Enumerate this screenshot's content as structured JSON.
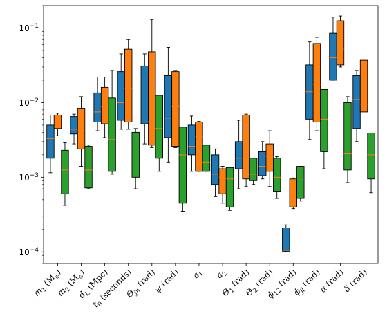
{
  "chart_data": {
    "type": "boxplot",
    "yscale": "log",
    "ylim": [
      7e-05,
      0.2
    ],
    "yticks": [
      {
        "value": 0.0001,
        "base": "10",
        "exp": "−4"
      },
      {
        "value": 0.001,
        "base": "10",
        "exp": "−3"
      },
      {
        "value": 0.01,
        "base": "10",
        "exp": "−2"
      },
      {
        "value": 0.1,
        "base": "10",
        "exp": "−1"
      }
    ],
    "categories": [
      {
        "main": "m",
        "sub": "1",
        "rest": " (M",
        "sun": "⊙",
        "end": ")"
      },
      {
        "main": "m",
        "sub": "2",
        "rest": " (M",
        "sun": "⊙",
        "end": ")"
      },
      {
        "main": "d",
        "sub": "L",
        "rest": " (Mpc)",
        "sun": "",
        "end": ""
      },
      {
        "main": "t",
        "sub": "0",
        "rest": " (seconds)",
        "sun": "",
        "end": ""
      },
      {
        "main": "Θ",
        "sub": "jn",
        "rest": " (rad)",
        "sun": "",
        "end": ""
      },
      {
        "main": "ψ",
        "sub": "",
        "rest": " (rad)",
        "sun": "",
        "end": ""
      },
      {
        "main": "a",
        "sub": "1",
        "rest": "",
        "sun": "",
        "end": ""
      },
      {
        "main": "a",
        "sub": "2",
        "rest": "",
        "sun": "",
        "end": ""
      },
      {
        "main": "Θ",
        "sub": "1",
        "rest": " (rad)",
        "sun": "",
        "end": ""
      },
      {
        "main": "Θ",
        "sub": "2",
        "rest": " (rad)",
        "sun": "",
        "end": ""
      },
      {
        "main": "ϕ",
        "sub": "12",
        "rest": " (rad)",
        "sun": "",
        "end": ""
      },
      {
        "main": "ϕ",
        "sub": "jl",
        "rest": " (rad)",
        "sun": "",
        "end": ""
      },
      {
        "main": "α",
        "sub": "",
        "rest": " (rad)",
        "sun": "",
        "end": ""
      },
      {
        "main": "δ",
        "sub": "",
        "rest": " (rad)",
        "sun": "",
        "end": ""
      }
    ],
    "series": [
      {
        "color": "#1f77b4",
        "boxes": [
          {
            "min": 0.00115,
            "q1": 0.0018,
            "median": 0.0033,
            "q3": 0.005,
            "max": 0.0068
          },
          {
            "min": 0.0028,
            "q1": 0.0038,
            "median": 0.0044,
            "q3": 0.0065,
            "max": 0.007
          },
          {
            "min": 0.0042,
            "q1": 0.0055,
            "median": 0.0075,
            "q3": 0.0135,
            "max": 0.022
          },
          {
            "min": 0.0044,
            "q1": 0.0058,
            "median": 0.01,
            "q3": 0.026,
            "max": 0.045
          },
          {
            "min": 0.0028,
            "q1": 0.0052,
            "median": 0.0068,
            "q3": 0.031,
            "max": 0.045
          },
          {
            "min": 0.0016,
            "q1": 0.0034,
            "median": 0.0062,
            "q3": 0.023,
            "max": 0.055
          },
          {
            "min": 0.0012,
            "q1": 0.002,
            "median": 0.0026,
            "q3": 0.005,
            "max": 0.0066
          },
          {
            "min": 0.00055,
            "q1": 0.0008,
            "median": 0.0011,
            "q3": 0.002,
            "max": 0.0024
          },
          {
            "min": 0.0007,
            "q1": 0.0013,
            "median": 0.0018,
            "q3": 0.003,
            "max": 0.0058
          },
          {
            "min": 0.00095,
            "q1": 0.00105,
            "median": 0.0014,
            "q3": 0.0022,
            "max": 0.003
          },
          {
            "min": 0.0001,
            "q1": 0.000102,
            "median": 0.000105,
            "q3": 0.00021,
            "max": 0.00023
          },
          {
            "min": 0.0032,
            "q1": 0.006,
            "median": 0.014,
            "q3": 0.032,
            "max": 0.065
          },
          {
            "min": 0.02,
            "q1": 0.02,
            "median": 0.04,
            "q3": 0.085,
            "max": 0.14
          },
          {
            "min": 0.003,
            "q1": 0.0045,
            "median": 0.011,
            "q3": 0.023,
            "max": 0.027
          }
        ]
      },
      {
        "color": "#ff7f0e",
        "boxes": [
          {
            "min": 0.0036,
            "q1": 0.0045,
            "median": 0.0055,
            "q3": 0.0068,
            "max": 0.0072
          },
          {
            "min": 0.0014,
            "q1": 0.0024,
            "median": 0.0042,
            "q3": 0.0084,
            "max": 0.012
          },
          {
            "min": 0.0034,
            "q1": 0.0052,
            "median": 0.0088,
            "q3": 0.016,
            "max": 0.022
          },
          {
            "min": 0.0044,
            "q1": 0.0055,
            "median": 0.0155,
            "q3": 0.052,
            "max": 0.07
          },
          {
            "min": 0.0025,
            "q1": 0.0027,
            "median": 0.0056,
            "q3": 0.048,
            "max": 0.13
          },
          {
            "min": 0.0025,
            "q1": 0.0026,
            "median": 0.0088,
            "q3": 0.026,
            "max": 0.027
          },
          {
            "min": 0.0012,
            "q1": 0.0012,
            "median": 0.0035,
            "q3": 0.0055,
            "max": 0.0056
          },
          {
            "min": 0.00045,
            "q1": 0.0006,
            "median": 0.001,
            "q3": 0.0013,
            "max": 0.0014
          },
          {
            "min": 0.00075,
            "q1": 0.00095,
            "median": 0.0015,
            "q3": 0.0068,
            "max": 0.007
          },
          {
            "min": 0.00075,
            "q1": 0.0012,
            "median": 0.0019,
            "q3": 0.0028,
            "max": 0.0042
          },
          {
            "min": 0.00038,
            "q1": 0.0004,
            "median": 0.00052,
            "q3": 0.00095,
            "max": 0.00098
          },
          {
            "min": 0.0042,
            "q1": 0.0055,
            "median": 0.0175,
            "q3": 0.062,
            "max": 0.075
          },
          {
            "min": 0.03,
            "q1": 0.032,
            "median": 0.052,
            "q3": 0.125,
            "max": 0.145
          },
          {
            "min": 0.0055,
            "q1": 0.0075,
            "median": 0.0095,
            "q3": 0.037,
            "max": 0.088
          }
        ]
      },
      {
        "color": "#2ca02c",
        "boxes": [
          {
            "min": 0.00042,
            "q1": 0.0006,
            "median": 0.00125,
            "q3": 0.0023,
            "max": 0.0029
          },
          {
            "min": 0.0007,
            "q1": 0.00072,
            "median": 0.00125,
            "q3": 0.0026,
            "max": 0.0027
          },
          {
            "min": 0.0011,
            "q1": 0.0012,
            "median": 0.0032,
            "q3": 0.0115,
            "max": 0.027
          },
          {
            "min": 0.0007,
            "q1": 0.001,
            "median": 0.0017,
            "q3": 0.004,
            "max": 0.0045
          },
          {
            "min": 0.0012,
            "q1": 0.0018,
            "median": 0.0045,
            "q3": 0.0125,
            "max": 0.0125
          },
          {
            "min": 0.00035,
            "q1": 0.00045,
            "median": 0.002,
            "q3": 0.0047,
            "max": 0.0047
          },
          {
            "min": 0.0012,
            "q1": 0.0012,
            "median": 0.0016,
            "q3": 0.0027,
            "max": 0.0027
          },
          {
            "min": 0.00036,
            "q1": 0.0004,
            "median": 0.00095,
            "q3": 0.00135,
            "max": 0.00135
          },
          {
            "min": 0.0008,
            "q1": 0.0009,
            "median": 0.0011,
            "q3": 0.0018,
            "max": 0.0018
          },
          {
            "min": 0.00052,
            "q1": 0.00065,
            "median": 0.001,
            "q3": 0.0018,
            "max": 0.0019
          },
          {
            "min": 0.00048,
            "q1": 0.00052,
            "median": 0.00092,
            "q3": 0.0014,
            "max": 0.0014
          },
          {
            "min": 0.0013,
            "q1": 0.0022,
            "median": 0.006,
            "q3": 0.015,
            "max": 0.015
          },
          {
            "min": 0.00085,
            "q1": 0.00125,
            "median": 0.0021,
            "q3": 0.01,
            "max": 0.012
          },
          {
            "min": 0.00062,
            "q1": 0.00095,
            "median": 0.002,
            "q3": 0.0039,
            "max": 0.0039
          }
        ]
      }
    ],
    "median_color": "#ff7f0e",
    "grid": false,
    "legend": "none"
  }
}
